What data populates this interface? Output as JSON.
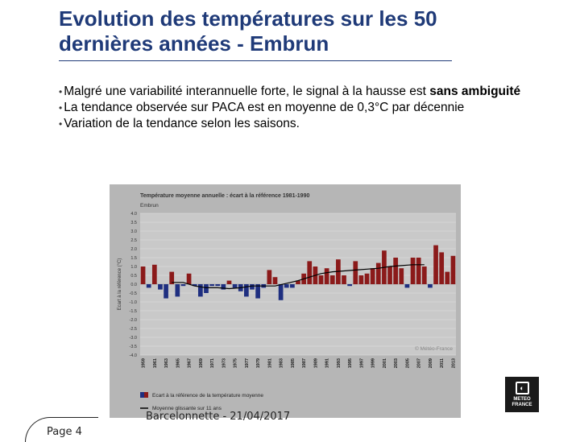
{
  "title": "Evolution des températures sur les 50 dernières années - Embrun",
  "bullets": [
    {
      "text": "Malgré une variabilité interannuelle forte, le signal à la hausse est ",
      "bold": "sans ambiguité"
    },
    {
      "text": "La tendance observée sur PACA est en moyenne de 0,3°C par décennie",
      "bold": ""
    },
    {
      "text": "Variation de la tendance selon les saisons.",
      "bold": ""
    }
  ],
  "footer": "Barcelonnette - 21/04/2017",
  "page_number": "Page 4",
  "logo": {
    "line1": "METEO",
    "line2": "FRANCE",
    "icon": "meteo-france-logo-icon"
  },
  "colors": {
    "title": "#1f3a78",
    "positive": "#8b1a1a",
    "negative": "#1f2f80",
    "plot_bg": "#c9c9c9",
    "frame_bg": "#b6b6b6",
    "moving_avg": "#000000"
  },
  "chart_data": {
    "type": "bar",
    "title": "Température moyenne annuelle : écart à la référence 1981-1990",
    "subtitle": "Embrun",
    "ylabel": "Ecart à la référence (°C)",
    "xlabel": "",
    "ylim": [
      -4.0,
      4.0
    ],
    "yticks": [
      4.0,
      3.5,
      3.0,
      2.5,
      2.0,
      1.5,
      1.0,
      0.5,
      0.0,
      -0.5,
      -1.0,
      -1.5,
      -2.0,
      -2.5,
      -3.0,
      -3.5,
      -4.0
    ],
    "ytick_labels": [
      "4.0",
      "3.5",
      "3.0",
      "2.5",
      "2.0",
      "1.5",
      "1.0",
      "0.5",
      "0.0",
      "-0.5",
      "-1.0",
      "-1.5",
      "-2.0",
      "-2.5",
      "-3.0",
      "-3.5",
      "-4.0"
    ],
    "xtick_labels": [
      "1959",
      "1961",
      "1963",
      "1965",
      "1967",
      "1969",
      "1971",
      "1973",
      "1975",
      "1977",
      "1979",
      "1981",
      "1983",
      "1985",
      "1987",
      "1989",
      "1991",
      "1993",
      "1995",
      "1997",
      "1999",
      "2001",
      "2003",
      "2005",
      "2007",
      "2009",
      "2011",
      "2013"
    ],
    "categories": [
      1959,
      1960,
      1961,
      1962,
      1963,
      1964,
      1965,
      1966,
      1967,
      1968,
      1969,
      1970,
      1971,
      1972,
      1973,
      1974,
      1975,
      1976,
      1977,
      1978,
      1979,
      1980,
      1981,
      1982,
      1983,
      1984,
      1985,
      1986,
      1987,
      1988,
      1989,
      1990,
      1991,
      1992,
      1993,
      1994,
      1995,
      1996,
      1997,
      1998,
      1999,
      2000,
      2001,
      2002,
      2003,
      2004,
      2005,
      2006,
      2007,
      2008,
      2009,
      2010,
      2011,
      2012,
      2013
    ],
    "values": [
      1.0,
      -0.2,
      1.1,
      -0.3,
      -0.8,
      0.7,
      -0.7,
      -0.1,
      0.6,
      -0.1,
      -0.7,
      -0.5,
      -0.1,
      -0.1,
      -0.3,
      0.2,
      -0.2,
      -0.4,
      -0.7,
      -0.3,
      -0.8,
      -0.2,
      0.8,
      0.4,
      -0.9,
      -0.2,
      -0.2,
      0.2,
      0.6,
      1.3,
      1.0,
      0.5,
      0.9,
      0.5,
      1.4,
      0.5,
      -0.1,
      1.3,
      0.5,
      0.6,
      0.9,
      1.2,
      1.9,
      1.0,
      1.5,
      0.9,
      -0.2,
      1.5,
      1.5,
      1.0,
      -0.2,
      2.2,
      1.8,
      0.7,
      1.6
    ],
    "moving_average": {
      "name": "Moyenne glissante sur 11 ans",
      "x": [
        1964,
        1966,
        1968,
        1970,
        1972,
        1974,
        1976,
        1978,
        1980,
        1982,
        1984,
        1986,
        1988,
        1990,
        1992,
        1994,
        1996,
        1998,
        2000,
        2002,
        2004,
        2006,
        2008
      ],
      "values": [
        0.1,
        0.1,
        -0.1,
        -0.2,
        -0.2,
        -0.25,
        -0.2,
        -0.1,
        -0.1,
        -0.1,
        0.05,
        0.2,
        0.4,
        0.6,
        0.7,
        0.75,
        0.8,
        0.85,
        0.9,
        1.0,
        1.05,
        1.1,
        1.1
      ]
    },
    "legend": [
      {
        "name": "Ecart à la référence de la température moyenne",
        "colors": [
          "#1f2f80",
          "#8b1a1a"
        ]
      },
      {
        "name": "Moyenne glissante sur 11 ans",
        "color": "#000000"
      }
    ],
    "legend_position": "bottom-left",
    "watermark": "© Météo-France",
    "grid": true
  }
}
